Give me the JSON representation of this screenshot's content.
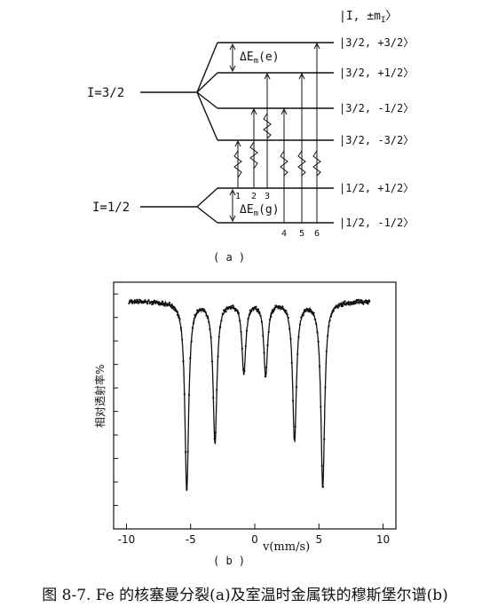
{
  "diagram": {
    "header_label": "|I, ±m",
    "header_sub": "I",
    "header_close": "〉",
    "upper_label": "I=3/2",
    "lower_label": "I=1/2",
    "delta_e_label": "ΔE",
    "delta_e_sub": "m",
    "delta_e_e": "(e)",
    "delta_e_g": "(g)",
    "states_upper": [
      "|3/2, +3/2〉",
      "|3/2, +1/2〉",
      "|3/2, -1/2〉",
      "|3/2, -3/2〉"
    ],
    "states_lower": [
      "|1/2, +1/2〉",
      "|1/2, -1/2〉"
    ],
    "transitions_top": [
      "1",
      "2",
      "3"
    ],
    "transitions_bottom": [
      "4",
      "5",
      "6"
    ],
    "panel_label": "( a )"
  },
  "chart_data": {
    "type": "line",
    "title": "",
    "xlabel": "v(mm/s)",
    "ylabel": "相对透射率%",
    "xlim": [
      -11,
      11
    ],
    "ylim": [
      0,
      1.05
    ],
    "xticks": [
      -10,
      -5,
      0,
      5,
      10
    ],
    "xtick_labels": [
      "-10",
      "-5",
      "0",
      "5",
      "10"
    ],
    "grid": false,
    "peaks": [
      {
        "position": -5.3,
        "depth": 0.8
      },
      {
        "position": -3.1,
        "depth": 0.6
      },
      {
        "position": -0.85,
        "depth": 0.3
      },
      {
        "position": 0.85,
        "depth": 0.31
      },
      {
        "position": 3.1,
        "depth": 0.59
      },
      {
        "position": 5.3,
        "depth": 0.79
      }
    ],
    "baseline": 0.97,
    "panel_label": "( b )"
  },
  "caption": "图 8-7. Fe 的核塞曼分裂(a)及室温时金属铁的穆斯堡尔谱(b)"
}
